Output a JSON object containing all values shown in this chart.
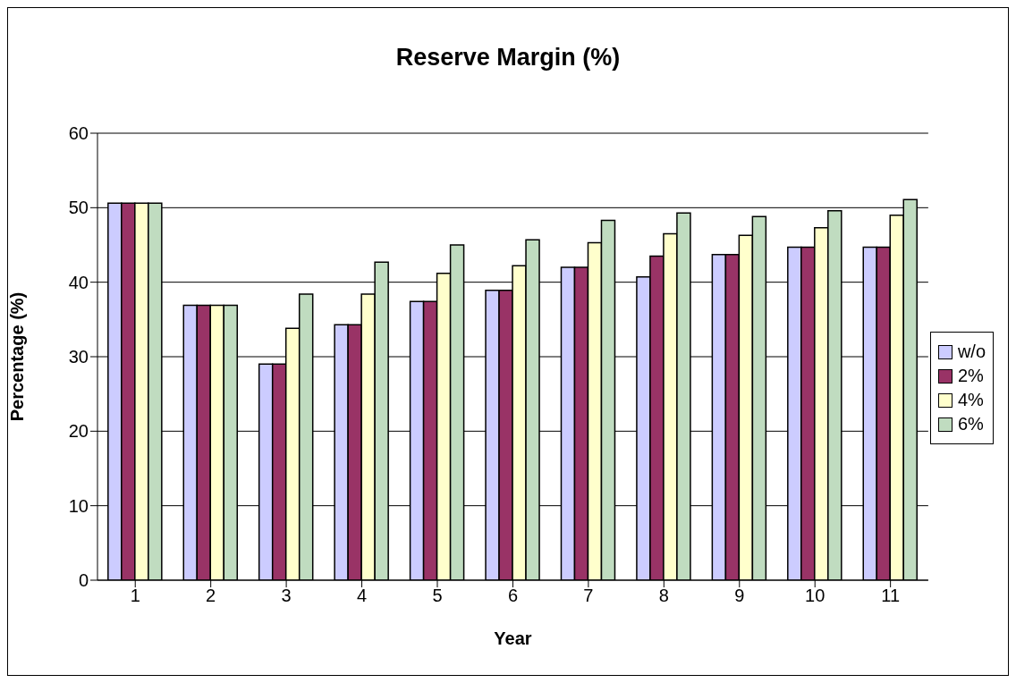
{
  "chart_data": {
    "type": "bar",
    "title": "Reserve Margin (%)",
    "xlabel": "Year",
    "ylabel": "Percentage (%)",
    "categories": [
      "1",
      "2",
      "3",
      "4",
      "5",
      "6",
      "7",
      "8",
      "9",
      "10",
      "11"
    ],
    "series": [
      {
        "name": "w/o",
        "color": "#ccccff",
        "values": [
          50.6,
          36.9,
          29,
          34.3,
          37.4,
          38.9,
          42,
          40.7,
          43.7,
          44.7,
          44.7
        ]
      },
      {
        "name": "2%",
        "color": "#993366",
        "values": [
          50.6,
          36.9,
          29,
          34.3,
          37.4,
          38.9,
          42,
          43.5,
          43.7,
          44.7,
          44.7
        ]
      },
      {
        "name": "4%",
        "color": "#ffffcc",
        "values": [
          50.6,
          36.9,
          33.8,
          38.4,
          41.2,
          42.2,
          45.3,
          46.5,
          46.3,
          47.3,
          49
        ]
      },
      {
        "name": "6%",
        "color": "#c0dcc0",
        "values": [
          50.6,
          36.9,
          38.4,
          42.7,
          45,
          45.7,
          48.3,
          49.3,
          48.8,
          49.6,
          51.1
        ]
      }
    ],
    "ylim": [
      0,
      60
    ],
    "yticks": [
      0,
      10,
      20,
      30,
      40,
      50,
      60
    ],
    "grid": "y",
    "legend": "right"
  }
}
